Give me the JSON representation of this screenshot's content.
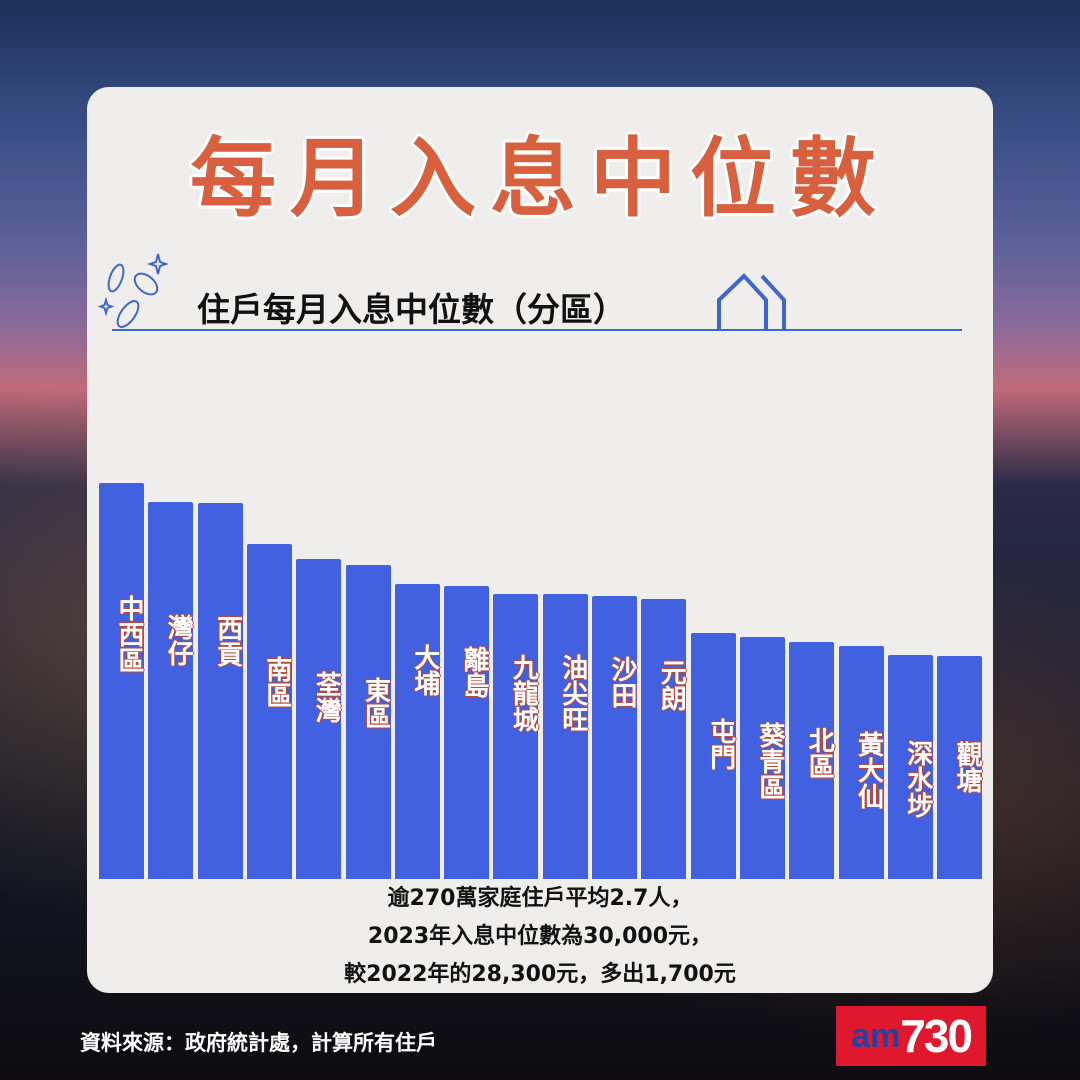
{
  "title": "每月入息中位數",
  "chart_data": {
    "type": "bar",
    "title": "住戶每月入息中位數（分區）",
    "categories": [
      "中西區",
      "灣仔",
      "西貢",
      "南區",
      "荃灣",
      "東區",
      "大埔",
      "離島",
      "九龍城",
      "油尖旺",
      "沙田",
      "元朗",
      "屯門",
      "葵青區",
      "北區",
      "黃大仙",
      "深水埗",
      "觀塘"
    ],
    "values": [
      396,
      377,
      376,
      335,
      320,
      314,
      295,
      293,
      285,
      285,
      283,
      280,
      246,
      242,
      237,
      233,
      224,
      223
    ],
    "value_note": "relative bar heights; no axis or values printed",
    "bar_color": "#4161e0",
    "grid": false
  },
  "notes": [
    "逾270萬家庭住戶平均2.7人，",
    "2023年入息中位數為30,000元，",
    "較2022年的28,300元，多出1,700元"
  ],
  "source": "資料來源：政府統計處，計算所有住戶",
  "logo": {
    "am": "am",
    "num": "730"
  },
  "colors": {
    "title": "#d8603e",
    "accent": "#3f66cf",
    "logo_bg": "#e0182d"
  }
}
